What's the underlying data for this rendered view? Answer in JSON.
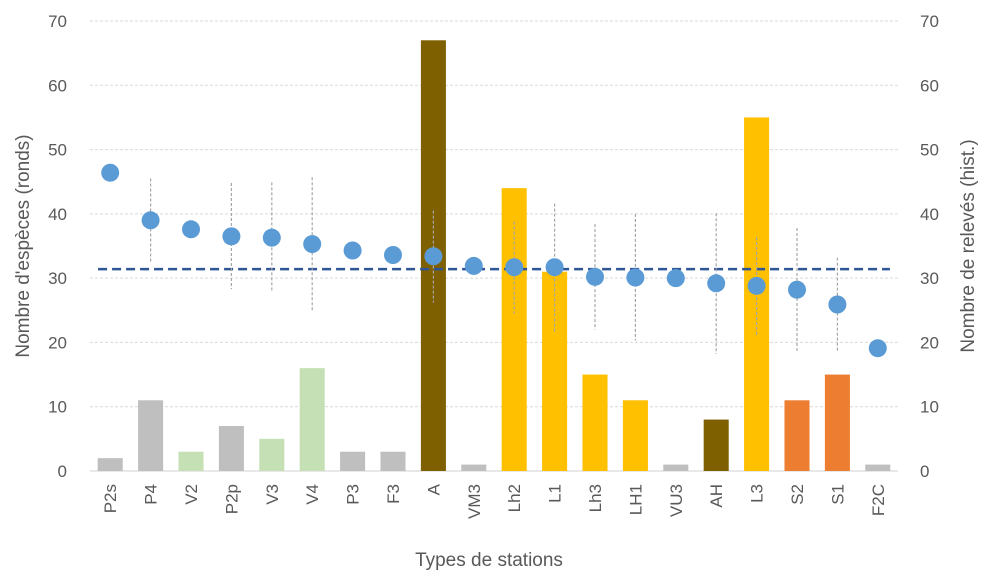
{
  "chart_data": {
    "type": "bar",
    "title": "",
    "xlabel": "Types de stations",
    "ylabel_left": "Nombre d'espèces (ronds)",
    "ylabel_right": "Nombre de relevés (hist.)",
    "ylim": [
      0,
      70
    ],
    "yticks": [
      0,
      10,
      20,
      30,
      40,
      50,
      60,
      70
    ],
    "grid": true,
    "categories": [
      "P2s",
      "P4",
      "V2",
      "P2p",
      "V3",
      "V4",
      "P3",
      "F3",
      "A",
      "VM3",
      "Lh2",
      "L1",
      "Lh3",
      "LH1",
      "VU3",
      "AH",
      "L3",
      "S2",
      "S1",
      "F2C"
    ],
    "bars": {
      "name": "Nombre de relevés",
      "axis": "right",
      "values": [
        2,
        11,
        3,
        7,
        5,
        16,
        3,
        3,
        67,
        1,
        44,
        31,
        15,
        11,
        1,
        8,
        55,
        11,
        15,
        1
      ],
      "colors": [
        "#bfbfbf",
        "#bfbfbf",
        "#c5e0b4",
        "#bfbfbf",
        "#c5e0b4",
        "#c5e0b4",
        "#bfbfbf",
        "#bfbfbf",
        "#7f6000",
        "#bfbfbf",
        "#ffc000",
        "#ffc000",
        "#ffc000",
        "#ffc000",
        "#bfbfbf",
        "#7f6000",
        "#ffc000",
        "#ed7d31",
        "#ed7d31",
        "#bfbfbf"
      ]
    },
    "points": {
      "name": "Nombre d'espèces",
      "axis": "left",
      "color": "#5b9bd5",
      "values": [
        46.4,
        39.0,
        37.6,
        36.5,
        36.3,
        35.3,
        34.3,
        33.6,
        33.4,
        31.9,
        31.7,
        31.7,
        30.2,
        30.1,
        30.0,
        29.2,
        28.8,
        28.2,
        25.9,
        19.1
      ]
    },
    "error_bars": {
      "color": "#a6a6a6",
      "ranges": [
        null,
        [
          32.5,
          45.5
        ],
        null,
        [
          28.3,
          44.8
        ],
        [
          27.8,
          44.9
        ],
        [
          25.0,
          45.7
        ],
        null,
        null,
        [
          26.2,
          40.5
        ],
        null,
        [
          24.5,
          38.8
        ],
        [
          21.5,
          41.6
        ],
        [
          22.0,
          38.4
        ],
        [
          20.3,
          40.0
        ],
        null,
        [
          18.2,
          40.1
        ],
        [
          21.2,
          36.4
        ],
        [
          18.6,
          37.8
        ],
        [
          18.5,
          33.2
        ],
        null
      ]
    },
    "mean_line": {
      "value": 31.4,
      "color": "#2f5597"
    }
  }
}
